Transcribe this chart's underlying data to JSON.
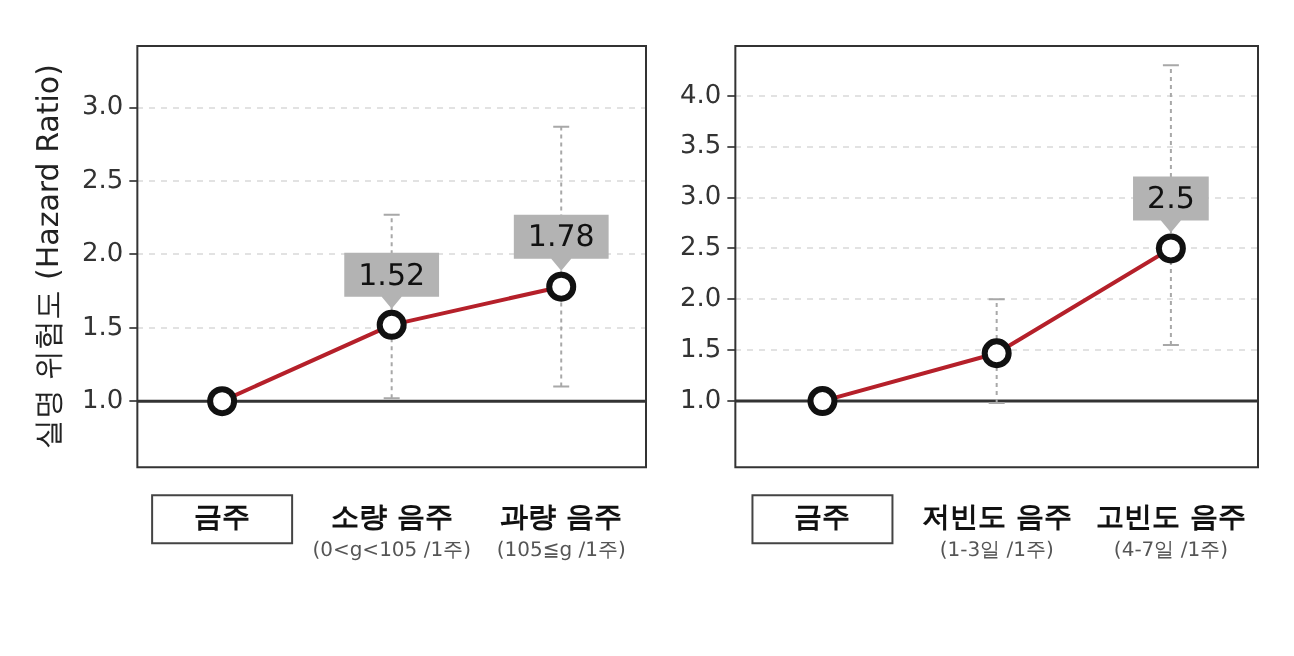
{
  "chart_data": [
    {
      "type": "line",
      "ylabel": "실명 위험도 (Hazard Ratio)",
      "categories": [
        "금주",
        "소량 음주\n(0<g<105 /1주)",
        "과량 음주\n(105≦g /1주)"
      ],
      "series": [
        {
          "color": "#b5202a",
          "values": [
            1.0,
            1.52,
            1.78
          ],
          "errors": [
            null,
            [
              1.02,
              2.27
            ],
            [
              1.1,
              2.87
            ]
          ],
          "value_labels": [
            null,
            "1.52",
            "1.78"
          ]
        }
      ],
      "ylim": [
        0.55,
        3.42
      ],
      "yticks": [
        {
          "value": 1,
          "label": "1.0"
        },
        1.5,
        {
          "value": 2,
          "label": "2.0"
        },
        2.5,
        {
          "value": 3,
          "label": "3.0"
        }
      ],
      "grid": "y",
      "marker": "circle",
      "legend": false,
      "ref_lines": [
        {
          "axis": "y",
          "value": 1.0,
          "color": "#333333"
        }
      ]
    },
    {
      "type": "line",
      "categories": [
        "금주",
        "저빈도 음주\n(1-3일 /1주)",
        "고빈도 음주\n(4-7일 /1주)"
      ],
      "series": [
        {
          "color": "#b5202a",
          "values": [
            1.0,
            1.47,
            2.5
          ],
          "errors": [
            null,
            [
              0.98,
              2.0
            ],
            [
              1.55,
              4.3
            ]
          ],
          "value_labels": [
            null,
            null,
            "2.5"
          ]
        }
      ],
      "ylim": [
        0.35,
        4.49
      ],
      "yticks": [
        {
          "value": 1,
          "label": "1.0"
        },
        1.5,
        {
          "value": 2,
          "label": "2.0"
        },
        2.5,
        {
          "value": 3,
          "label": "3.0"
        },
        3.5,
        {
          "value": 4,
          "label": "4.0"
        }
      ],
      "grid": "y",
      "marker": "circle",
      "legend": false,
      "ref_lines": [
        {
          "axis": "y",
          "value": 1.0,
          "color": "#333333"
        }
      ]
    }
  ]
}
